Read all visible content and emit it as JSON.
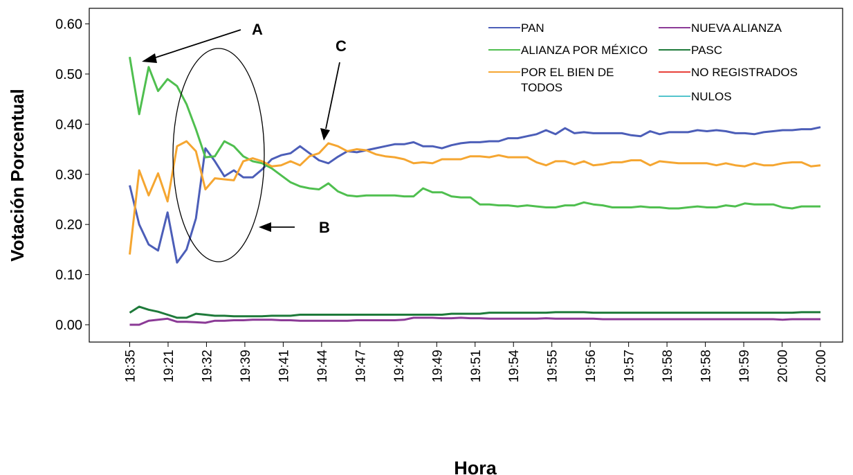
{
  "chart_data": {
    "type": "line",
    "xlabel": "Hora",
    "ylabel": "Votación Porcentual",
    "ylim": [
      0.0,
      0.6
    ],
    "y_ticks": [
      "0.00",
      "0.10",
      "0.20",
      "0.30",
      "0.40",
      "0.50",
      "0.60"
    ],
    "x_tick_labels": [
      "18:35",
      "19:21",
      "19:32",
      "19:39",
      "19:41",
      "19:44",
      "19:47",
      "19:48",
      "19:49",
      "19:51",
      "19:54",
      "19:55",
      "19:56",
      "19:57",
      "19:58",
      "19:58",
      "19:59",
      "20:00",
      "20:00"
    ],
    "legend_position": "top-right",
    "grid": false,
    "series": [
      {
        "name": "PAN",
        "color": "#4c5eb8",
        "values": [
          0.278,
          0.2,
          0.16,
          0.148,
          0.224,
          0.124,
          0.15,
          0.212,
          0.352,
          0.326,
          0.296,
          0.308,
          0.294,
          0.294,
          0.31,
          0.33,
          0.338,
          0.342,
          0.356,
          0.342,
          0.328,
          0.322,
          0.335,
          0.346,
          0.344,
          0.348,
          0.352,
          0.356,
          0.36,
          0.36,
          0.364,
          0.356,
          0.356,
          0.352,
          0.358,
          0.362,
          0.364,
          0.364,
          0.366,
          0.366,
          0.372,
          0.372,
          0.376,
          0.38,
          0.388,
          0.38,
          0.392,
          0.382,
          0.384,
          0.382,
          0.382,
          0.382,
          0.382,
          0.378,
          0.376,
          0.386,
          0.38,
          0.384,
          0.384,
          0.384,
          0.388,
          0.386,
          0.388,
          0.386,
          0.382,
          0.382,
          0.38,
          0.384,
          0.386,
          0.388,
          0.388,
          0.39,
          0.39,
          0.394
        ]
      },
      {
        "name": "ALIANZA POR MÉXICO",
        "color": "#4fbf4f",
        "values": [
          0.534,
          0.42,
          0.514,
          0.466,
          0.49,
          0.476,
          0.44,
          0.39,
          0.334,
          0.336,
          0.366,
          0.356,
          0.336,
          0.326,
          0.322,
          0.312,
          0.298,
          0.284,
          0.276,
          0.272,
          0.27,
          0.282,
          0.266,
          0.258,
          0.256,
          0.258,
          0.258,
          0.258,
          0.258,
          0.256,
          0.256,
          0.272,
          0.264,
          0.264,
          0.256,
          0.254,
          0.254,
          0.24,
          0.24,
          0.238,
          0.238,
          0.236,
          0.238,
          0.236,
          0.234,
          0.234,
          0.238,
          0.238,
          0.244,
          0.24,
          0.238,
          0.234,
          0.234,
          0.234,
          0.236,
          0.234,
          0.234,
          0.232,
          0.232,
          0.234,
          0.236,
          0.234,
          0.234,
          0.238,
          0.236,
          0.242,
          0.24,
          0.24,
          0.24,
          0.234,
          0.232,
          0.236,
          0.236,
          0.236
        ]
      },
      {
        "name": "POR EL BIEN DE TODOS",
        "color": "#f5a631",
        "values": [
          0.14,
          0.308,
          0.258,
          0.302,
          0.246,
          0.356,
          0.366,
          0.346,
          0.27,
          0.292,
          0.29,
          0.288,
          0.326,
          0.332,
          0.326,
          0.316,
          0.318,
          0.326,
          0.318,
          0.336,
          0.342,
          0.362,
          0.356,
          0.346,
          0.35,
          0.348,
          0.34,
          0.336,
          0.334,
          0.33,
          0.322,
          0.324,
          0.322,
          0.33,
          0.33,
          0.33,
          0.336,
          0.336,
          0.334,
          0.338,
          0.334,
          0.334,
          0.334,
          0.324,
          0.318,
          0.326,
          0.326,
          0.32,
          0.326,
          0.318,
          0.32,
          0.324,
          0.324,
          0.328,
          0.328,
          0.318,
          0.326,
          0.324,
          0.322,
          0.322,
          0.322,
          0.322,
          0.318,
          0.322,
          0.318,
          0.316,
          0.322,
          0.318,
          0.318,
          0.322,
          0.324,
          0.324,
          0.316,
          0.318
        ]
      },
      {
        "name": "NUEVA ALIANZA",
        "color": "#8b3a96",
        "values": [
          0.0,
          0.0,
          0.008,
          0.01,
          0.012,
          0.006,
          0.006,
          0.005,
          0.004,
          0.008,
          0.008,
          0.009,
          0.009,
          0.01,
          0.01,
          0.01,
          0.009,
          0.009,
          0.008,
          0.008,
          0.008,
          0.008,
          0.008,
          0.008,
          0.009,
          0.009,
          0.009,
          0.009,
          0.009,
          0.01,
          0.014,
          0.014,
          0.014,
          0.013,
          0.013,
          0.014,
          0.013,
          0.013,
          0.012,
          0.012,
          0.012,
          0.012,
          0.012,
          0.012,
          0.013,
          0.012,
          0.012,
          0.012,
          0.012,
          0.012,
          0.011,
          0.011,
          0.011,
          0.011,
          0.011,
          0.011,
          0.011,
          0.011,
          0.011,
          0.011,
          0.011,
          0.011,
          0.011,
          0.011,
          0.011,
          0.011,
          0.011,
          0.011,
          0.011,
          0.01,
          0.011,
          0.011,
          0.011,
          0.011
        ]
      },
      {
        "name": "PASC",
        "color": "#1e7a3a",
        "values": [
          0.024,
          0.036,
          0.03,
          0.026,
          0.02,
          0.014,
          0.014,
          0.022,
          0.02,
          0.018,
          0.018,
          0.017,
          0.017,
          0.017,
          0.017,
          0.018,
          0.018,
          0.018,
          0.02,
          0.02,
          0.02,
          0.02,
          0.02,
          0.02,
          0.02,
          0.02,
          0.02,
          0.02,
          0.02,
          0.02,
          0.02,
          0.02,
          0.02,
          0.02,
          0.022,
          0.022,
          0.022,
          0.022,
          0.024,
          0.024,
          0.024,
          0.024,
          0.024,
          0.024,
          0.024,
          0.025,
          0.025,
          0.025,
          0.025,
          0.024,
          0.024,
          0.024,
          0.024,
          0.024,
          0.024,
          0.024,
          0.024,
          0.024,
          0.024,
          0.024,
          0.024,
          0.024,
          0.024,
          0.024,
          0.024,
          0.024,
          0.024,
          0.024,
          0.024,
          0.024,
          0.024,
          0.025,
          0.025,
          0.025
        ]
      },
      {
        "name": "NO REGISTRADOS",
        "color": "#e8403a",
        "values": []
      },
      {
        "name": "NULOS",
        "color": "#52c4cc",
        "values": []
      }
    ],
    "annotations": [
      {
        "label": "A"
      },
      {
        "label": "B"
      },
      {
        "label": "C"
      }
    ]
  }
}
